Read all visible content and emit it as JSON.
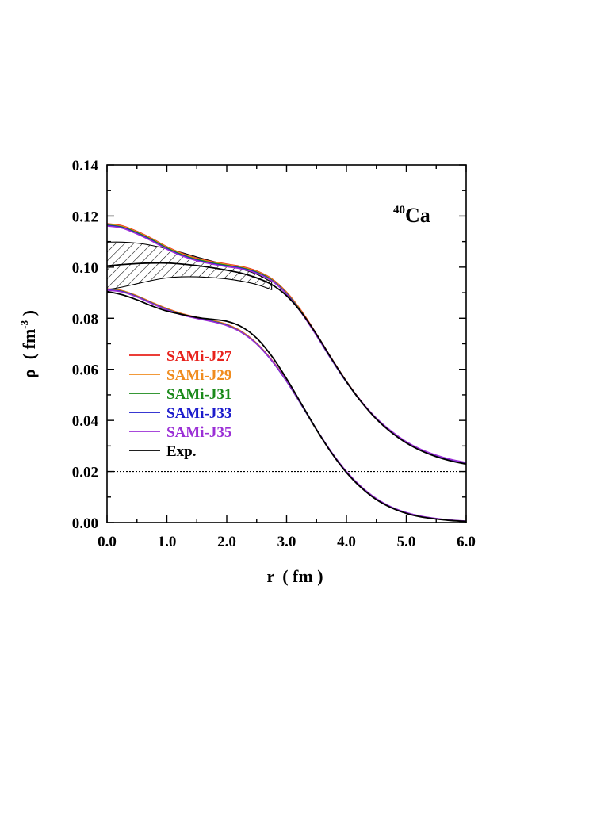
{
  "chart_data": {
    "type": "line",
    "annotation": {
      "mass": "40",
      "element": "Ca"
    },
    "xlabel": {
      "symbol": "r",
      "unit": "( fm )"
    },
    "ylabel": {
      "symbol": "ρ",
      "unit_open": "( fm",
      "unit_exp": "-3",
      "unit_close": " )"
    },
    "xlim": [
      0.0,
      6.0
    ],
    "ylim": [
      0.0,
      0.14
    ],
    "x_ticks": [
      {
        "value": 0,
        "label": "0.0"
      },
      {
        "value": 1,
        "label": "1.0"
      },
      {
        "value": 2,
        "label": "2.0"
      },
      {
        "value": 3,
        "label": "3.0"
      },
      {
        "value": 4,
        "label": "4.0"
      },
      {
        "value": 5,
        "label": "5.0"
      },
      {
        "value": 6,
        "label": "6.0"
      }
    ],
    "y_ticks": [
      {
        "value": 0.0,
        "label": "0.00"
      },
      {
        "value": 0.02,
        "label": "0.02"
      },
      {
        "value": 0.04,
        "label": "0.04"
      },
      {
        "value": 0.06,
        "label": "0.06"
      },
      {
        "value": 0.08,
        "label": "0.08"
      },
      {
        "value": 0.1,
        "label": "0.10"
      },
      {
        "value": 0.12,
        "label": "0.12"
      },
      {
        "value": 0.14,
        "label": "0.14"
      }
    ],
    "reference_line": {
      "y": 0.02,
      "style": "dotted"
    },
    "legend": {
      "position": "left-middle",
      "entries": [
        {
          "label": "SAMi-J27",
          "color": "#e8221c"
        },
        {
          "label": "SAMi-J29",
          "color": "#f08c1e"
        },
        {
          "label": "SAMi-J31",
          "color": "#1a8a1a"
        },
        {
          "label": "SAMi-J33",
          "color": "#1c1ccc"
        },
        {
          "label": "SAMi-J35",
          "color": "#9b2fd6"
        },
        {
          "label": "Exp.",
          "color": "#000000"
        }
      ]
    },
    "x": [
      0.0,
      0.25,
      0.5,
      0.75,
      1.0,
      1.25,
      1.5,
      1.75,
      2.0,
      2.25,
      2.5,
      2.75,
      3.0,
      3.25,
      3.5,
      3.75,
      4.0,
      4.25,
      4.5,
      4.75,
      5.0,
      5.25,
      5.5,
      5.75,
      6.0
    ],
    "groups": [
      {
        "offset": 0.02,
        "series": [
          {
            "color": "#e8221c",
            "y": [
              0.117,
              0.1162,
              0.114,
              0.1112,
              0.108,
              0.1054,
              0.1035,
              0.1022,
              0.1012,
              0.1002,
              0.0985,
              0.0955,
              0.0902,
              0.0828,
              0.0738,
              0.0643,
              0.0553,
              0.0474,
              0.0408,
              0.0356,
              0.0315,
              0.0284,
              0.0261,
              0.0244,
              0.0232
            ]
          },
          {
            "color": "#f08c1e",
            "y": [
              0.1168,
              0.116,
              0.1138,
              0.111,
              0.1078,
              0.1052,
              0.1033,
              0.102,
              0.101,
              0.1,
              0.0983,
              0.0953,
              0.09,
              0.0826,
              0.0736,
              0.0641,
              0.0551,
              0.0472,
              0.0406,
              0.0354,
              0.0313,
              0.0282,
              0.026,
              0.0243,
              0.0231
            ]
          },
          {
            "color": "#1a8a1a",
            "y": [
              0.1165,
              0.1157,
              0.1135,
              0.1107,
              0.1075,
              0.1049,
              0.103,
              0.1017,
              0.1007,
              0.0997,
              0.098,
              0.095,
              0.0897,
              0.0823,
              0.0733,
              0.0639,
              0.055,
              0.0472,
              0.0406,
              0.0355,
              0.0314,
              0.0283,
              0.0261,
              0.0244,
              0.0232
            ]
          },
          {
            "color": "#1c1ccc",
            "y": [
              0.1163,
              0.1155,
              0.1132,
              0.1104,
              0.1072,
              0.1046,
              0.1027,
              0.1014,
              0.1004,
              0.0995,
              0.0978,
              0.0948,
              0.0895,
              0.0821,
              0.0732,
              0.0638,
              0.055,
              0.0472,
              0.0407,
              0.0356,
              0.0315,
              0.0284,
              0.0262,
              0.0245,
              0.0233
            ]
          },
          {
            "color": "#9b2fd6",
            "y": [
              0.1161,
              0.1153,
              0.113,
              0.1102,
              0.107,
              0.1044,
              0.1025,
              0.1012,
              0.1002,
              0.0993,
              0.0976,
              0.0947,
              0.0894,
              0.082,
              0.0732,
              0.0639,
              0.0551,
              0.0474,
              0.0409,
              0.0358,
              0.0317,
              0.0286,
              0.0264,
              0.0247,
              0.0235
            ]
          },
          {
            "color": "#000000",
            "y": [
              0.1005,
              0.101,
              0.1014,
              0.1016,
              0.1016,
              0.1012,
              0.1006,
              0.0998,
              0.0988,
              0.0976,
              0.0958,
              0.0932,
              0.0888,
              0.0822,
              0.0737,
              0.0642,
              0.0552,
              0.0472,
              0.0405,
              0.0353,
              0.0312,
              0.0281,
              0.0258,
              0.0241,
              0.0229
            ]
          }
        ],
        "band": {
          "upper": [
            0.1098,
            0.1098,
            0.1094,
            0.1085,
            0.1072,
            0.1057,
            0.104,
            0.1024,
            0.1008,
            0.0992,
            0.0972,
            0.0942
          ],
          "lower": [
            0.0912,
            0.0922,
            0.0935,
            0.0948,
            0.0958,
            0.0962,
            0.0962,
            0.0959,
            0.0954,
            0.0945,
            0.0932,
            0.0912
          ]
        }
      },
      {
        "offset": 0.0,
        "series": [
          {
            "color": "#e8221c",
            "y": [
              0.0915,
              0.0908,
              0.0888,
              0.0862,
              0.0838,
              0.0818,
              0.0804,
              0.0792,
              0.0776,
              0.0748,
              0.0702,
              0.0637,
              0.0555,
              0.0461,
              0.0364,
              0.0275,
              0.0199,
              0.0138,
              0.0092,
              0.006,
              0.0038,
              0.0024,
              0.0015,
              0.0009,
              0.0005
            ]
          },
          {
            "color": "#f08c1e",
            "y": [
              0.0914,
              0.0907,
              0.0887,
              0.0861,
              0.0837,
              0.0817,
              0.0803,
              0.0791,
              0.0775,
              0.0747,
              0.0701,
              0.0636,
              0.0554,
              0.046,
              0.0363,
              0.0274,
              0.0198,
              0.0138,
              0.0092,
              0.006,
              0.0038,
              0.0024,
              0.0015,
              0.0009,
              0.0005
            ]
          },
          {
            "color": "#1a8a1a",
            "y": [
              0.0912,
              0.0905,
              0.0885,
              0.0859,
              0.0835,
              0.0815,
              0.0801,
              0.0789,
              0.0773,
              0.0745,
              0.07,
              0.0635,
              0.0553,
              0.046,
              0.0363,
              0.0274,
              0.0199,
              0.0138,
              0.0093,
              0.006,
              0.0038,
              0.0024,
              0.0015,
              0.0009,
              0.0005
            ]
          },
          {
            "color": "#1c1ccc",
            "y": [
              0.0911,
              0.0904,
              0.0884,
              0.0858,
              0.0834,
              0.0814,
              0.08,
              0.0788,
              0.0772,
              0.0744,
              0.0699,
              0.0634,
              0.0553,
              0.046,
              0.0364,
              0.0275,
              0.0199,
              0.0139,
              0.0093,
              0.0061,
              0.0039,
              0.0024,
              0.0015,
              0.0009,
              0.0005
            ]
          },
          {
            "color": "#9b2fd6",
            "y": [
              0.091,
              0.0903,
              0.0883,
              0.0857,
              0.0833,
              0.0813,
              0.0799,
              0.0787,
              0.0771,
              0.0744,
              0.0699,
              0.0635,
              0.0554,
              0.0461,
              0.0365,
              0.0276,
              0.02,
              0.014,
              0.0094,
              0.0061,
              0.0039,
              0.0025,
              0.0016,
              0.001,
              0.0006
            ]
          },
          {
            "color": "#000000",
            "y": [
              0.0905,
              0.0892,
              0.0872,
              0.0848,
              0.0828,
              0.0815,
              0.0803,
              0.0796,
              0.0788,
              0.0766,
              0.0722,
              0.0652,
              0.0563,
              0.0464,
              0.0364,
              0.0273,
              0.0196,
              0.0136,
              0.009,
              0.0058,
              0.0036,
              0.0022,
              0.0014,
              0.0008,
              0.0005
            ]
          }
        ]
      }
    ]
  }
}
